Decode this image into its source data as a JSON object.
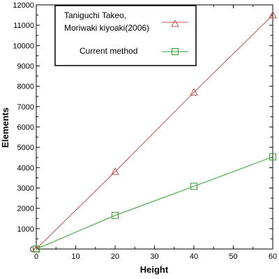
{
  "chart_data": {
    "type": "line",
    "xlabel": "Height",
    "ylabel": "Elements",
    "xlim": [
      0,
      60
    ],
    "ylim": [
      0,
      12000
    ],
    "xticks": [
      0,
      10,
      20,
      30,
      40,
      50,
      60
    ],
    "yticks": [
      0,
      1000,
      2000,
      3000,
      4000,
      5000,
      6000,
      7000,
      8000,
      9000,
      10000,
      11000,
      12000
    ],
    "grid": false,
    "legend_position": "top-left",
    "series": [
      {
        "name_lines": [
          "Taniguchi Takeo,",
          "Moriwaki kiyoaki(2006)"
        ],
        "marker": "triangle",
        "color": "#c0504d",
        "x": [
          0,
          20,
          40,
          60
        ],
        "y": [
          0,
          3800,
          7700,
          11500
        ]
      },
      {
        "name_lines": [
          "Current method"
        ],
        "marker": "square",
        "color": "#2ca02c",
        "x": [
          0,
          20,
          40,
          60
        ],
        "y": [
          0,
          1650,
          3080,
          4530
        ]
      }
    ]
  }
}
